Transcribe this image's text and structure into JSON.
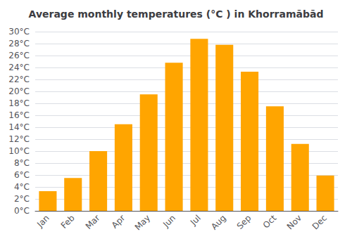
{
  "chart_data": {
    "type": "bar",
    "title": "Average monthly temperatures (°C ) in Khorramābād",
    "categories": [
      "Jan",
      "Feb",
      "Mar",
      "Apr",
      "May",
      "Jun",
      "Jul",
      "Aug",
      "Sep",
      "Oct",
      "Nov",
      "Dec"
    ],
    "values": [
      3.3,
      5.5,
      10.0,
      14.5,
      19.5,
      24.8,
      28.8,
      27.8,
      23.3,
      17.5,
      11.2,
      5.9
    ],
    "color": "#FFA500",
    "ylim": [
      0,
      30
    ],
    "yticks": [
      {
        "value": 0,
        "label": "0°C"
      },
      {
        "value": 2,
        "label": "2°C"
      },
      {
        "value": 4,
        "label": "4°C"
      },
      {
        "value": 6,
        "label": "6°C"
      },
      {
        "value": 8,
        "label": "8°C"
      },
      {
        "value": 10,
        "label": "10°C"
      },
      {
        "value": 12,
        "label": "12°C"
      },
      {
        "value": 14,
        "label": "14°C"
      },
      {
        "value": 16,
        "label": "16°C"
      },
      {
        "value": 18,
        "label": "18°C"
      },
      {
        "value": 20,
        "label": "20°C"
      },
      {
        "value": 22,
        "label": "22°C"
      },
      {
        "value": 24,
        "label": "24°C"
      },
      {
        "value": 26,
        "label": "26°C"
      },
      {
        "value": 28,
        "label": "28°C"
      },
      {
        "value": 30,
        "label": "30°C"
      }
    ],
    "grid": true
  }
}
